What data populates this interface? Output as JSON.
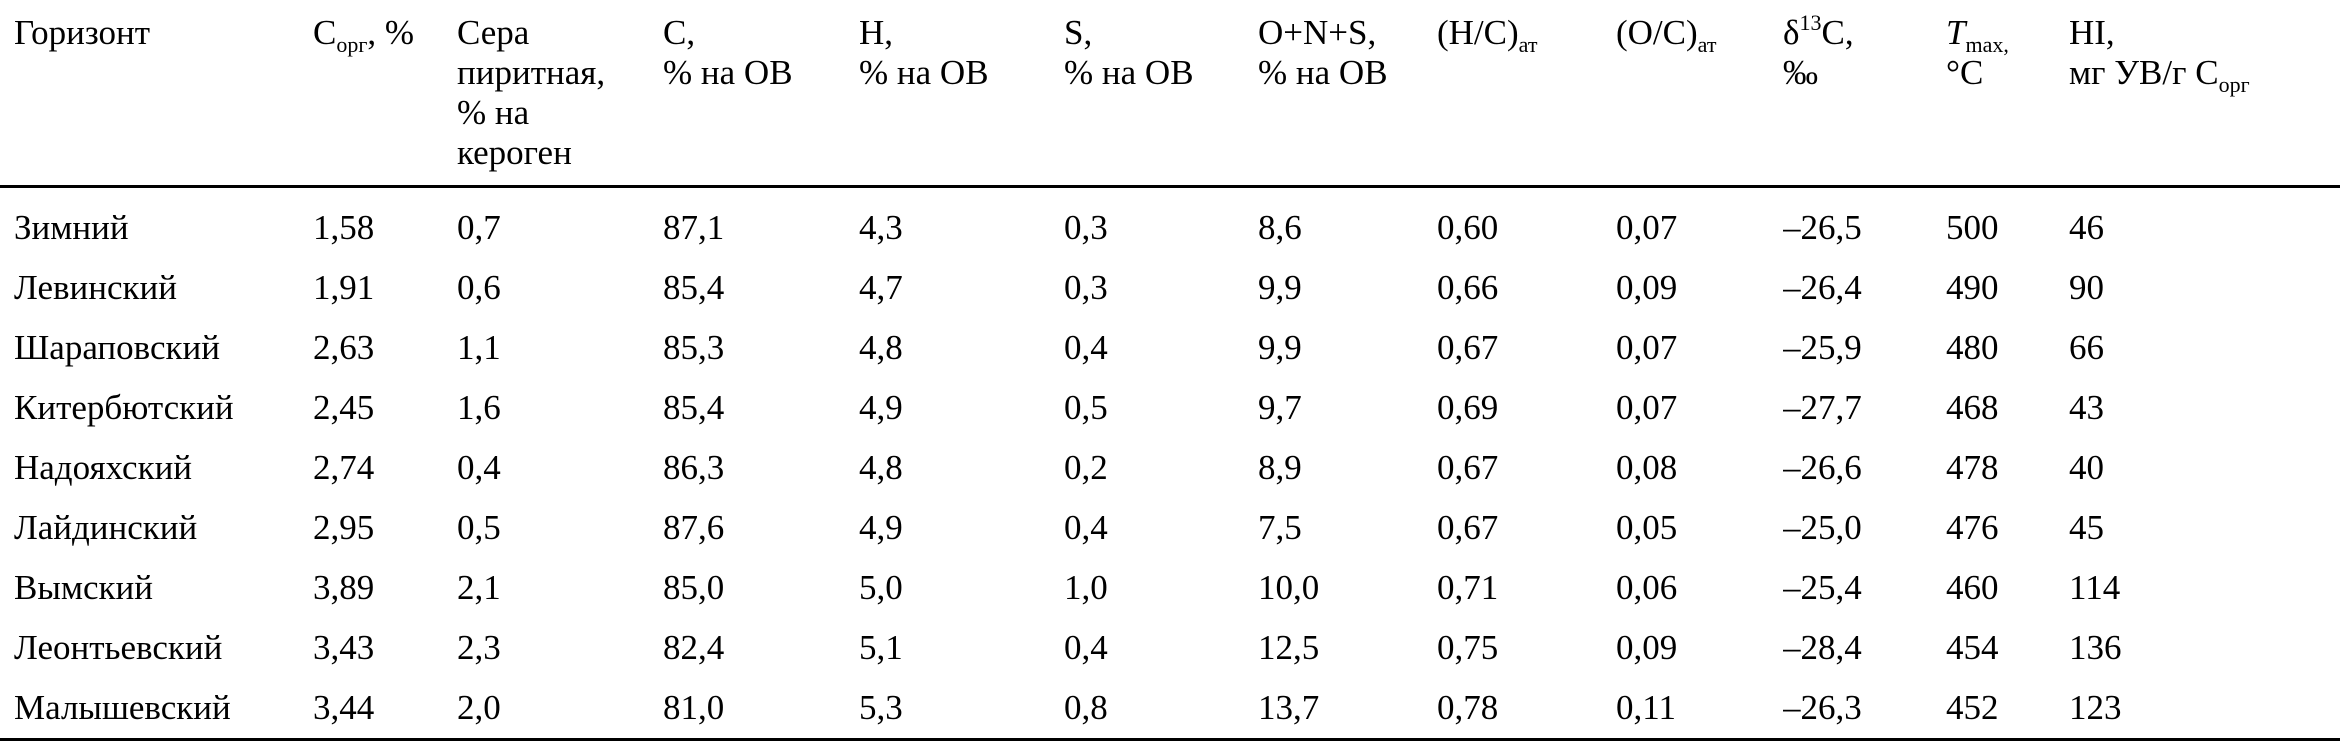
{
  "table": {
    "headers": {
      "horizon": "Горизонт",
      "corg_main": "C",
      "corg_sub": "орг",
      "corg_tail": ", %",
      "sulfur_l1": "Сера",
      "sulfur_l2": "пиритная,",
      "sulfur_l3": "% на",
      "sulfur_l4": "кероген",
      "c_l1": "C,",
      "c_l2": "% на ОВ",
      "h_l1": "H,",
      "h_l2": "% на ОВ",
      "s_l1": "S,",
      "s_l2": "% на ОВ",
      "onS_l1": "O+N+S,",
      "onS_l2": "% на ОВ",
      "hc_main": "(H/C)",
      "hc_sub": "ат",
      "oc_main": "(O/C)",
      "oc_sub": "ат",
      "d13_pre": "δ",
      "d13_sup": "13",
      "d13_tail": "C,",
      "d13_l2": "‰",
      "tmax_main": "T",
      "tmax_sub": "max,",
      "tmax_l2": "°C",
      "hi_l1": "HI,",
      "hi_l2": "мг УВ/г C",
      "hi_sub": "орг"
    },
    "rows": [
      [
        "Зимний",
        "1,58",
        "0,7",
        "87,1",
        "4,3",
        "0,3",
        "8,6",
        "0,60",
        "0,07",
        "–26,5",
        "500",
        "46"
      ],
      [
        "Левинский",
        "1,91",
        "0,6",
        "85,4",
        "4,7",
        "0,3",
        "9,9",
        "0,66",
        "0,09",
        "–26,4",
        "490",
        "90"
      ],
      [
        "Шараповский",
        "2,63",
        "1,1",
        "85,3",
        "4,8",
        "0,4",
        "9,9",
        "0,67",
        "0,07",
        "–25,9",
        "480",
        "66"
      ],
      [
        "Китербютский",
        "2,45",
        "1,6",
        "85,4",
        "4,9",
        "0,5",
        "9,7",
        "0,69",
        "0,07",
        "–27,7",
        "468",
        "43"
      ],
      [
        "Надояхский",
        "2,74",
        "0,4",
        "86,3",
        "4,8",
        "0,2",
        "8,9",
        "0,67",
        "0,08",
        "–26,6",
        "478",
        "40"
      ],
      [
        "Лайдинский",
        "2,95",
        "0,5",
        "87,6",
        "4,9",
        "0,4",
        "7,5",
        "0,67",
        "0,05",
        "–25,0",
        "476",
        "45"
      ],
      [
        "Вымский",
        "3,89",
        "2,1",
        "85,0",
        "5,0",
        "1,0",
        "10,0",
        "0,71",
        "0,06",
        "–25,4",
        "460",
        "114"
      ],
      [
        "Леонтьевский",
        "3,43",
        "2,3",
        "82,4",
        "5,1",
        "0,4",
        "12,5",
        "0,75",
        "0,09",
        "–28,4",
        "454",
        "136"
      ],
      [
        "Малышевский",
        "3,44",
        "2,0",
        "81,0",
        "5,3",
        "0,8",
        "13,7",
        "0,78",
        "0,11",
        "–26,3",
        "452",
        "123"
      ]
    ]
  }
}
